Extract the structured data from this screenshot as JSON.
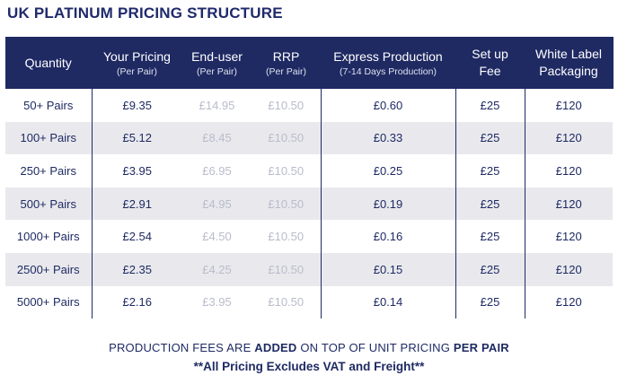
{
  "title": "UK PLATINUM PRICING STRUCTURE",
  "table": {
    "headers": [
      {
        "main": "Quantity",
        "sub": ""
      },
      {
        "main": "Your Pricing",
        "sub": "(Per Pair)"
      },
      {
        "main": "End-user",
        "sub": "(Per Pair)"
      },
      {
        "main": "RRP",
        "sub": "(Per Pair)"
      },
      {
        "main": "Express Production",
        "sub": "(7-14 Days Production)"
      },
      {
        "main": "Set up",
        "sub": "Fee"
      },
      {
        "main": "White Label",
        "sub": "Packaging"
      }
    ],
    "rows": [
      [
        "50+ Pairs",
        "£9.35",
        "£14.95",
        "£10.50",
        "£0.60",
        "£25",
        "£120"
      ],
      [
        "100+ Pairs",
        "£5.12",
        "£8.45",
        "£10.50",
        "£0.33",
        "£25",
        "£120"
      ],
      [
        "250+ Pairs",
        "£3.95",
        "£6.95",
        "£10.50",
        "£0.25",
        "£25",
        "£120"
      ],
      [
        "500+ Pairs",
        "£2.91",
        "£4.95",
        "£10.50",
        "£0.19",
        "£25",
        "£120"
      ],
      [
        "1000+ Pairs",
        "£2.54",
        "£4.50",
        "£10.50",
        "£0.16",
        "£25",
        "£120"
      ],
      [
        "2500+ Pairs",
        "£2.35",
        "£4.25",
        "£10.50",
        "£0.15",
        "£25",
        "£120"
      ],
      [
        "5000+ Pairs",
        "£2.16",
        "£3.95",
        "£10.50",
        "£0.14",
        "£25",
        "£120"
      ]
    ]
  },
  "footer": {
    "line1_part1": "PRODUCTION FEES ARE ",
    "line1_bold1": "ADDED",
    "line1_part2": " ON TOP OF UNIT PRICING ",
    "line1_bold2": "PER PAIR",
    "line2": "**All Pricing Excludes VAT and Freight**"
  },
  "colors": {
    "header_bg": "#1f2a63",
    "text": "#1e2a63",
    "muted": "#b9bccb",
    "alt_row": "#e9e9ed"
  }
}
